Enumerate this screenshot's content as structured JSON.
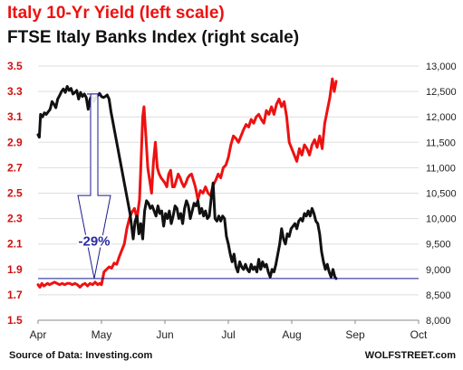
{
  "titles": {
    "line1": "Italy 10-Yr Yield (left scale)",
    "line2": "FTSE Italy Banks Index (right scale)"
  },
  "footer": {
    "source": "Source of Data: Investing.com",
    "brand": "WOLFSTREET.com"
  },
  "colors": {
    "yield": "#ee1111",
    "banks": "#111111",
    "reference_line": "#1a1a8c",
    "annotation": "#2a2aa0",
    "grid": "#dddddd"
  },
  "chart_data": {
    "type": "line",
    "x_labels": [
      "Apr",
      "May",
      "Jun",
      "Jul",
      "Aug",
      "Sep",
      "Oct"
    ],
    "left_axis": {
      "ticks": [
        "1.5",
        "1.7",
        "1.9",
        "2.1",
        "2.3",
        "2.5",
        "2.7",
        "2.9",
        "3.1",
        "3.3",
        "3.5"
      ],
      "ylim": [
        1.5,
        3.5
      ]
    },
    "right_axis": {
      "ticks": [
        "8,000",
        "8,500",
        "9,000",
        "9,500",
        "10,000",
        "10,500",
        "11,000",
        "11,500",
        "12,000",
        "12,500",
        "13,000"
      ],
      "ylim": [
        8000,
        13000
      ]
    },
    "grid": "horizontal",
    "annotation": {
      "label": "-29%",
      "from_value": 12450,
      "to_value": 8820
    },
    "reference_line": {
      "value": 8820
    },
    "series": [
      {
        "axis": "left",
        "color": "#ee1111",
        "points": [
          [
            0.0,
            1.78
          ],
          [
            0.03,
            1.76
          ],
          [
            0.06,
            1.79
          ],
          [
            0.09,
            1.77
          ],
          [
            0.12,
            1.78
          ],
          [
            0.15,
            1.79
          ],
          [
            0.18,
            1.78
          ],
          [
            0.22,
            1.79
          ],
          [
            0.26,
            1.8
          ],
          [
            0.3,
            1.79
          ],
          [
            0.34,
            1.78
          ],
          [
            0.38,
            1.79
          ],
          [
            0.42,
            1.78
          ],
          [
            0.46,
            1.79
          ],
          [
            0.5,
            1.79
          ],
          [
            0.54,
            1.78
          ],
          [
            0.58,
            1.79
          ],
          [
            0.62,
            1.78
          ],
          [
            0.66,
            1.76
          ],
          [
            0.7,
            1.78
          ],
          [
            0.74,
            1.79
          ],
          [
            0.78,
            1.77
          ],
          [
            0.82,
            1.79
          ],
          [
            0.86,
            1.78
          ],
          [
            0.9,
            1.8
          ],
          [
            0.94,
            1.78
          ],
          [
            0.97,
            1.79
          ],
          [
            1.0,
            1.78
          ],
          [
            1.04,
            1.88
          ],
          [
            1.08,
            1.9
          ],
          [
            1.12,
            1.92
          ],
          [
            1.16,
            1.91
          ],
          [
            1.2,
            1.95
          ],
          [
            1.24,
            1.94
          ],
          [
            1.28,
            2.0
          ],
          [
            1.32,
            2.05
          ],
          [
            1.36,
            2.1
          ],
          [
            1.4,
            2.22
          ],
          [
            1.44,
            2.3
          ],
          [
            1.48,
            2.35
          ],
          [
            1.52,
            2.38
          ],
          [
            1.56,
            2.3
          ],
          [
            1.6,
            2.45
          ],
          [
            1.62,
            2.7
          ],
          [
            1.65,
            3.1
          ],
          [
            1.67,
            3.18
          ],
          [
            1.7,
            2.95
          ],
          [
            1.73,
            2.7
          ],
          [
            1.76,
            2.6
          ],
          [
            1.79,
            2.5
          ],
          [
            1.82,
            2.75
          ],
          [
            1.85,
            2.9
          ],
          [
            1.88,
            2.7
          ],
          [
            1.91,
            2.65
          ],
          [
            1.94,
            2.62
          ],
          [
            1.97,
            2.6
          ],
          [
            2.0,
            2.58
          ],
          [
            2.03,
            2.55
          ],
          [
            2.06,
            2.65
          ],
          [
            2.09,
            2.68
          ],
          [
            2.12,
            2.55
          ],
          [
            2.15,
            2.55
          ],
          [
            2.18,
            2.6
          ],
          [
            2.21,
            2.65
          ],
          [
            2.24,
            2.62
          ],
          [
            2.27,
            2.58
          ],
          [
            2.3,
            2.55
          ],
          [
            2.33,
            2.58
          ],
          [
            2.36,
            2.62
          ],
          [
            2.39,
            2.64
          ],
          [
            2.42,
            2.65
          ],
          [
            2.45,
            2.6
          ],
          [
            2.48,
            2.55
          ],
          [
            2.52,
            2.45
          ],
          [
            2.56,
            2.52
          ],
          [
            2.6,
            2.5
          ],
          [
            2.64,
            2.55
          ],
          [
            2.68,
            2.5
          ],
          [
            2.72,
            2.48
          ],
          [
            2.76,
            2.56
          ],
          [
            2.8,
            2.6
          ],
          [
            2.84,
            2.65
          ],
          [
            2.88,
            2.62
          ],
          [
            2.92,
            2.7
          ],
          [
            2.96,
            2.72
          ],
          [
            3.0,
            2.78
          ],
          [
            3.04,
            2.88
          ],
          [
            3.08,
            2.95
          ],
          [
            3.12,
            2.93
          ],
          [
            3.16,
            2.9
          ],
          [
            3.2,
            2.95
          ],
          [
            3.24,
            3.0
          ],
          [
            3.28,
            3.04
          ],
          [
            3.32,
            3.02
          ],
          [
            3.36,
            3.08
          ],
          [
            3.4,
            3.05
          ],
          [
            3.44,
            3.1
          ],
          [
            3.48,
            3.12
          ],
          [
            3.52,
            3.08
          ],
          [
            3.56,
            3.05
          ],
          [
            3.6,
            3.15
          ],
          [
            3.64,
            3.12
          ],
          [
            3.68,
            3.18
          ],
          [
            3.72,
            3.12
          ],
          [
            3.76,
            3.2
          ],
          [
            3.8,
            3.24
          ],
          [
            3.84,
            3.18
          ],
          [
            3.88,
            3.22
          ],
          [
            3.92,
            3.1
          ],
          [
            3.96,
            2.9
          ],
          [
            4.0,
            2.85
          ],
          [
            4.04,
            2.8
          ],
          [
            4.08,
            2.75
          ],
          [
            4.12,
            2.85
          ],
          [
            4.16,
            2.8
          ],
          [
            4.2,
            2.88
          ],
          [
            4.24,
            2.85
          ],
          [
            4.28,
            2.8
          ],
          [
            4.32,
            2.88
          ],
          [
            4.36,
            2.92
          ],
          [
            4.4,
            2.86
          ],
          [
            4.44,
            2.95
          ],
          [
            4.48,
            2.85
          ],
          [
            4.52,
            3.05
          ],
          [
            4.56,
            3.15
          ],
          [
            4.6,
            3.25
          ],
          [
            4.64,
            3.4
          ],
          [
            4.67,
            3.3
          ],
          [
            4.7,
            3.38
          ]
        ]
      },
      {
        "axis": "right",
        "color": "#111111",
        "points": [
          [
            0.0,
            11650
          ],
          [
            0.02,
            11600
          ],
          [
            0.04,
            12050
          ],
          [
            0.07,
            12000
          ],
          [
            0.1,
            12080
          ],
          [
            0.13,
            12050
          ],
          [
            0.16,
            12100
          ],
          [
            0.19,
            12150
          ],
          [
            0.22,
            12300
          ],
          [
            0.25,
            12250
          ],
          [
            0.28,
            12180
          ],
          [
            0.31,
            12350
          ],
          [
            0.34,
            12420
          ],
          [
            0.37,
            12500
          ],
          [
            0.4,
            12550
          ],
          [
            0.43,
            12480
          ],
          [
            0.46,
            12600
          ],
          [
            0.49,
            12520
          ],
          [
            0.52,
            12560
          ],
          [
            0.55,
            12450
          ],
          [
            0.58,
            12480
          ],
          [
            0.61,
            12520
          ],
          [
            0.64,
            12350
          ],
          [
            0.67,
            12480
          ],
          [
            0.7,
            12400
          ],
          [
            0.73,
            12450
          ],
          [
            0.76,
            12380
          ],
          [
            0.79,
            12150
          ],
          [
            0.82,
            12350
          ],
          [
            0.85,
            12420
          ],
          [
            0.88,
            12300
          ],
          [
            0.91,
            12380
          ],
          [
            0.94,
            12420
          ],
          [
            0.97,
            12460
          ],
          [
            1.0,
            12400
          ],
          [
            1.03,
            12380
          ],
          [
            1.06,
            12400
          ],
          [
            1.09,
            12430
          ],
          [
            1.12,
            12350
          ],
          [
            1.15,
            12100
          ],
          [
            1.18,
            11900
          ],
          [
            1.21,
            11700
          ],
          [
            1.24,
            11500
          ],
          [
            1.27,
            11300
          ],
          [
            1.3,
            11100
          ],
          [
            1.33,
            10900
          ],
          [
            1.36,
            10700
          ],
          [
            1.39,
            10500
          ],
          [
            1.42,
            10300
          ],
          [
            1.45,
            10100
          ],
          [
            1.48,
            9800
          ],
          [
            1.5,
            9600
          ],
          [
            1.53,
            9950
          ],
          [
            1.56,
            10050
          ],
          [
            1.59,
            9700
          ],
          [
            1.62,
            9900
          ],
          [
            1.65,
            9600
          ],
          [
            1.68,
            10150
          ],
          [
            1.71,
            10350
          ],
          [
            1.74,
            10300
          ],
          [
            1.77,
            10200
          ],
          [
            1.8,
            10250
          ],
          [
            1.83,
            10150
          ],
          [
            1.86,
            10050
          ],
          [
            1.89,
            10250
          ],
          [
            1.92,
            10100
          ],
          [
            1.95,
            10150
          ],
          [
            1.98,
            9850
          ],
          [
            2.01,
            10100
          ],
          [
            2.04,
            10000
          ],
          [
            2.07,
            10150
          ],
          [
            2.1,
            9900
          ],
          [
            2.13,
            10050
          ],
          [
            2.16,
            10250
          ],
          [
            2.19,
            10200
          ],
          [
            2.22,
            10000
          ],
          [
            2.25,
            10100
          ],
          [
            2.28,
            9900
          ],
          [
            2.31,
            10200
          ],
          [
            2.34,
            10350
          ],
          [
            2.37,
            10250
          ],
          [
            2.4,
            10000
          ],
          [
            2.43,
            10150
          ],
          [
            2.46,
            10300
          ],
          [
            2.49,
            10250
          ],
          [
            2.52,
            10350
          ],
          [
            2.55,
            10100
          ],
          [
            2.58,
            10200
          ],
          [
            2.61,
            10050
          ],
          [
            2.64,
            10150
          ],
          [
            2.67,
            10000
          ],
          [
            2.7,
            10050
          ],
          [
            2.73,
            10400
          ],
          [
            2.76,
            10700
          ],
          [
            2.79,
            10000
          ],
          [
            2.82,
            9950
          ],
          [
            2.85,
            10050
          ],
          [
            2.88,
            9950
          ],
          [
            2.91,
            10050
          ],
          [
            2.94,
            10000
          ],
          [
            2.97,
            9650
          ],
          [
            3.0,
            9500
          ],
          [
            3.03,
            9300
          ],
          [
            3.06,
            9150
          ],
          [
            3.09,
            9300
          ],
          [
            3.12,
            9050
          ],
          [
            3.15,
            8950
          ],
          [
            3.18,
            9150
          ],
          [
            3.21,
            9050
          ],
          [
            3.24,
            9000
          ],
          [
            3.27,
            9100
          ],
          [
            3.3,
            9000
          ],
          [
            3.33,
            8950
          ],
          [
            3.36,
            9100
          ],
          [
            3.39,
            9000
          ],
          [
            3.42,
            9050
          ],
          [
            3.45,
            8950
          ],
          [
            3.48,
            9200
          ],
          [
            3.51,
            9000
          ],
          [
            3.54,
            9150
          ],
          [
            3.57,
            9050
          ],
          [
            3.6,
            9100
          ],
          [
            3.63,
            8950
          ],
          [
            3.66,
            8850
          ],
          [
            3.69,
            9000
          ],
          [
            3.72,
            8950
          ],
          [
            3.75,
            9100
          ],
          [
            3.78,
            9300
          ],
          [
            3.81,
            9500
          ],
          [
            3.84,
            9800
          ],
          [
            3.87,
            9600
          ],
          [
            3.9,
            9500
          ],
          [
            3.93,
            9700
          ],
          [
            3.96,
            9650
          ],
          [
            3.99,
            9800
          ],
          [
            4.02,
            9850
          ],
          [
            4.05,
            9900
          ],
          [
            4.08,
            9800
          ],
          [
            4.11,
            9950
          ],
          [
            4.14,
            10000
          ],
          [
            4.17,
            9950
          ],
          [
            4.2,
            10100
          ],
          [
            4.23,
            10050
          ],
          [
            4.26,
            10150
          ],
          [
            4.29,
            10050
          ],
          [
            4.32,
            10200
          ],
          [
            4.35,
            10100
          ],
          [
            4.38,
            9950
          ],
          [
            4.41,
            9900
          ],
          [
            4.44,
            9700
          ],
          [
            4.47,
            9350
          ],
          [
            4.5,
            9150
          ],
          [
            4.53,
            9000
          ],
          [
            4.56,
            9100
          ],
          [
            4.59,
            8950
          ],
          [
            4.62,
            8850
          ],
          [
            4.65,
            9000
          ],
          [
            4.68,
            8850
          ],
          [
            4.7,
            8820
          ]
        ]
      }
    ]
  }
}
